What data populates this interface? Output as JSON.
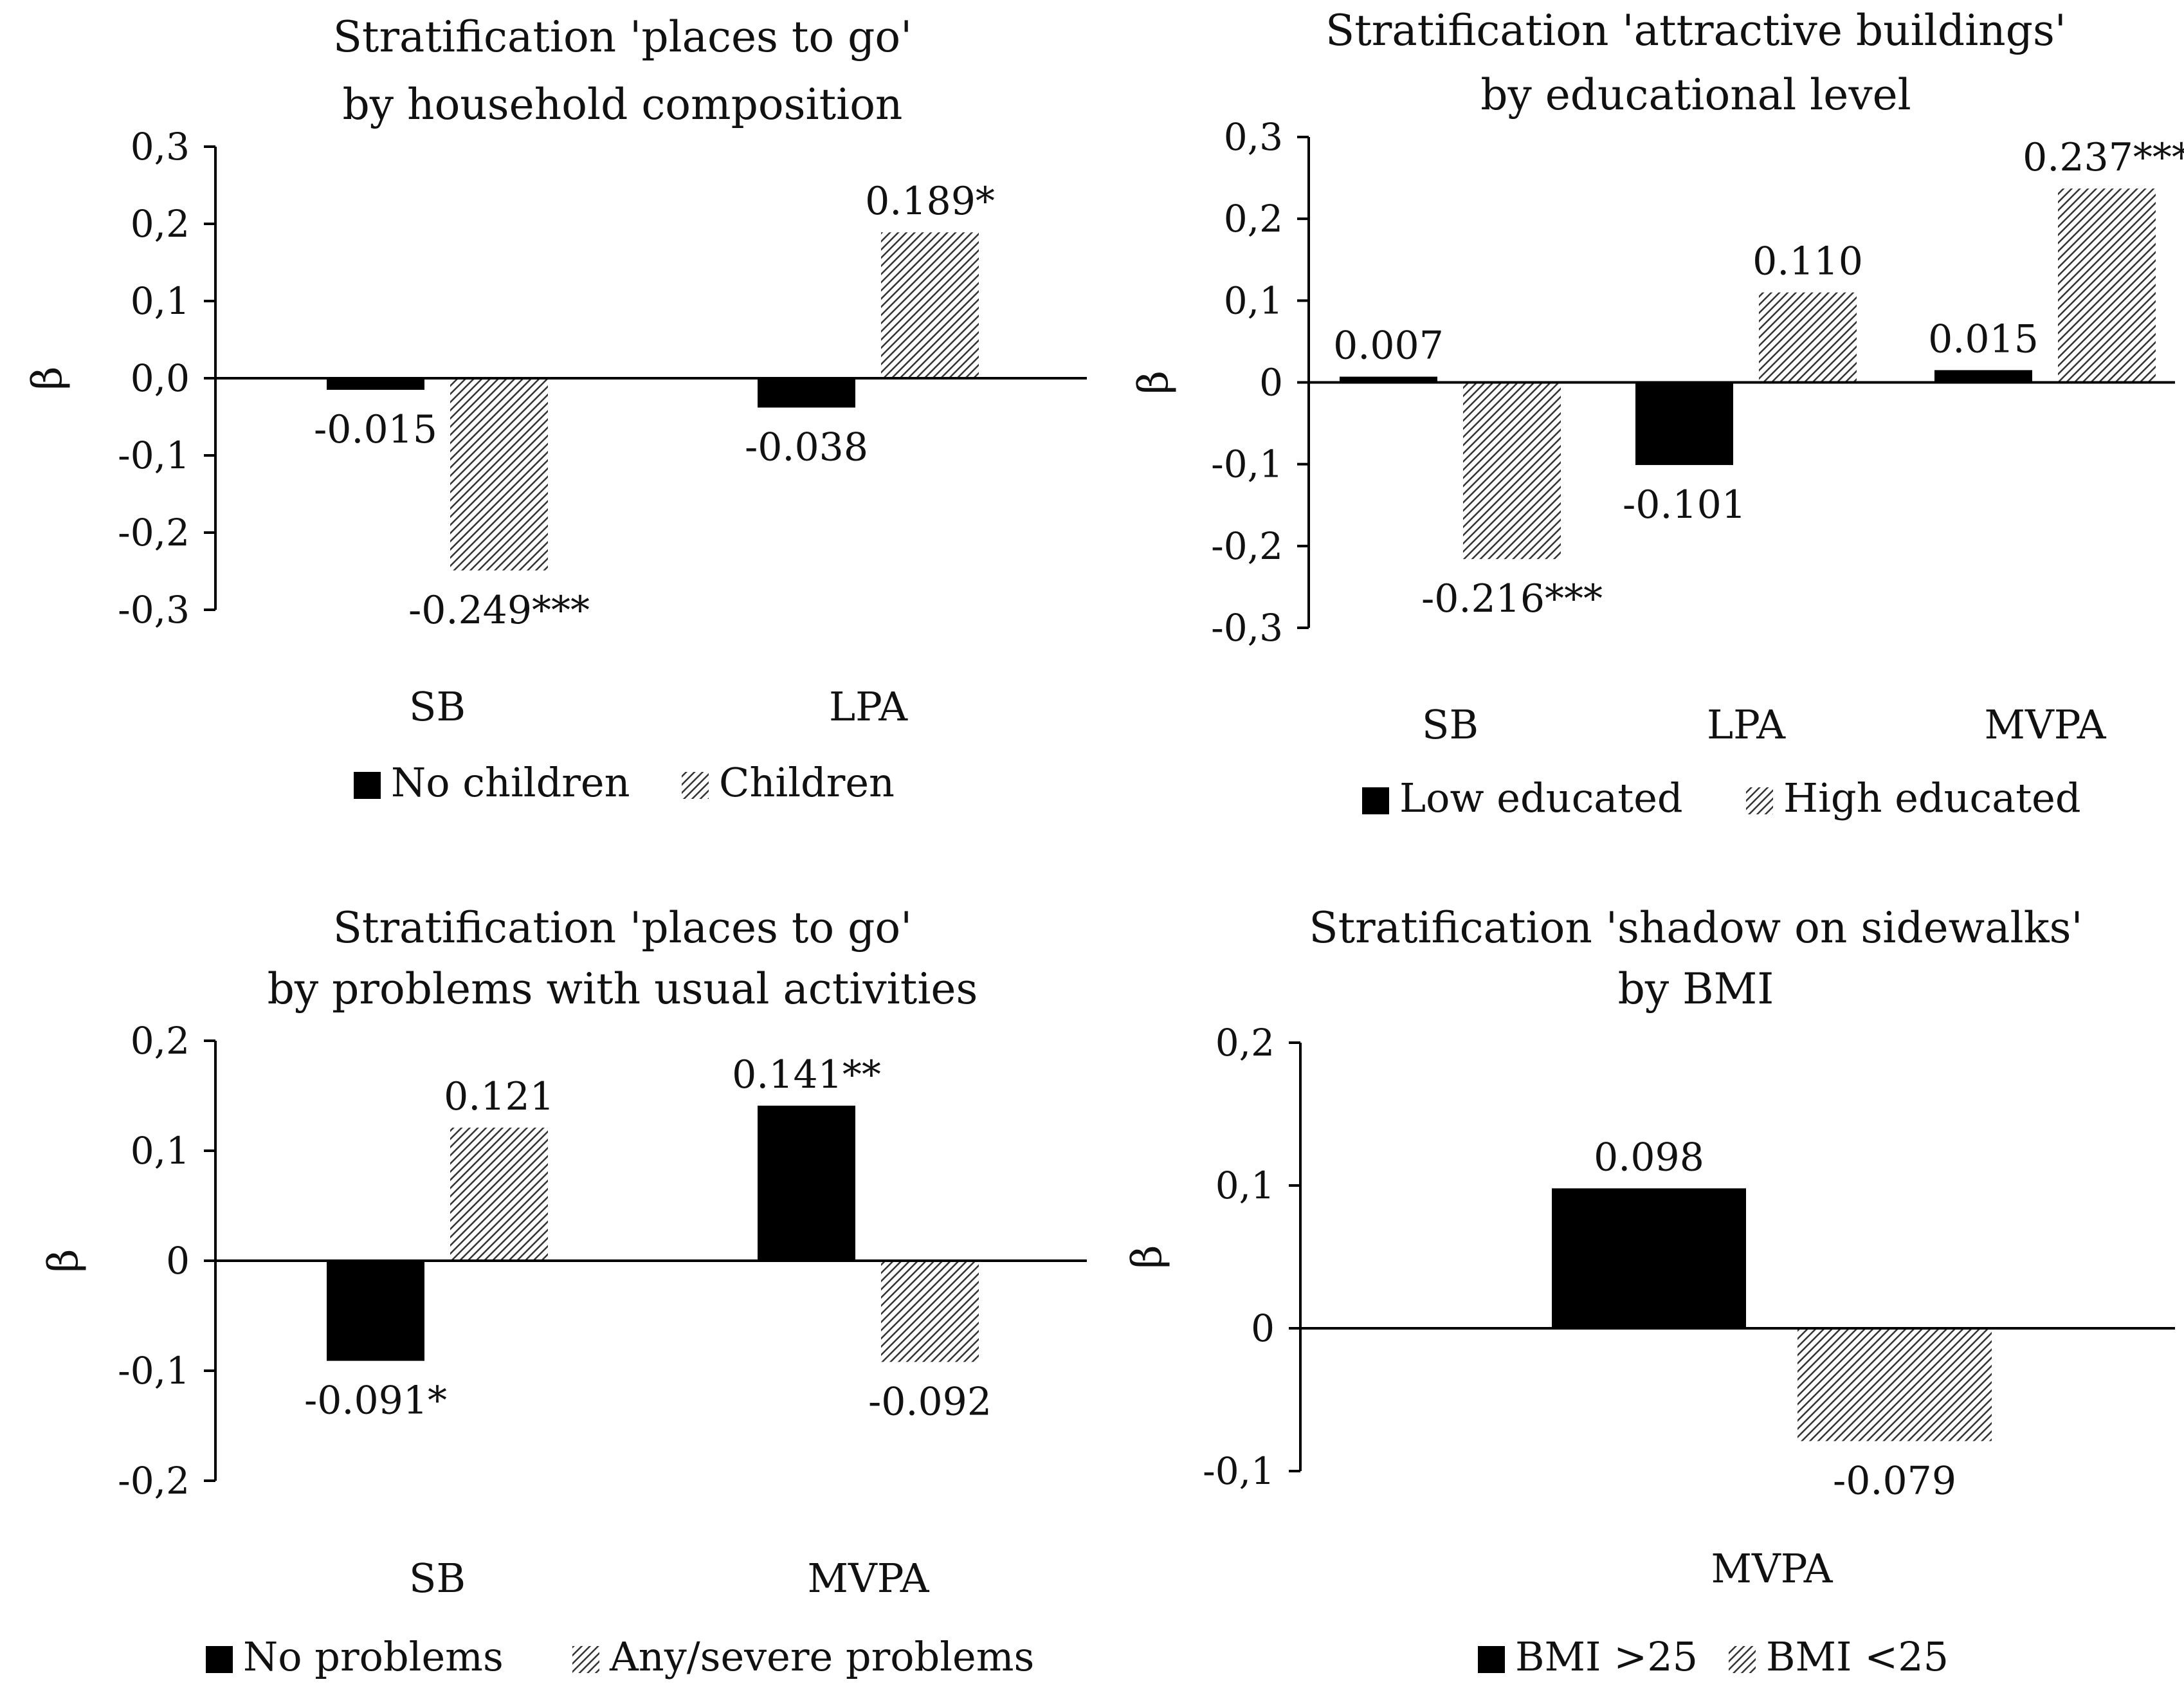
{
  "chart_data": [
    {
      "type": "bar",
      "title": [
        "Stratification 'places to go'",
        "by household composition"
      ],
      "ylabel": "β",
      "ylim": [
        -0.3,
        0.3
      ],
      "yticks": [
        "0,3",
        "0,2",
        "0,1",
        "0,0",
        "-0,1",
        "-0,2",
        "-0,3"
      ],
      "categories": [
        "SB",
        "LPA"
      ],
      "series": [
        {
          "name": "No children",
          "style": "solid",
          "values": [
            -0.015,
            -0.038
          ],
          "labels": [
            "-0.015",
            "-0.038"
          ]
        },
        {
          "name": "Children",
          "style": "hatched",
          "values": [
            -0.249,
            0.189
          ],
          "labels": [
            "-0.249***",
            "0.189*"
          ]
        }
      ]
    },
    {
      "type": "bar",
      "title": [
        "Stratification 'attractive buildings'",
        "by educational level"
      ],
      "ylabel": "β",
      "ylim": [
        -0.3,
        0.3
      ],
      "yticks": [
        "0,3",
        "0,2",
        "0,1",
        "0",
        "-0,1",
        "-0,2",
        "-0,3"
      ],
      "categories": [
        "SB",
        "LPA",
        "MVPA"
      ],
      "series": [
        {
          "name": "Low educated",
          "style": "solid",
          "values": [
            0.007,
            -0.101,
            0.015
          ],
          "labels": [
            "0.007",
            "-0.101",
            "0.015"
          ]
        },
        {
          "name": "High educated",
          "style": "hatched",
          "values": [
            -0.216,
            0.11,
            0.237
          ],
          "labels": [
            "-0.216***",
            "0.110",
            "0.237***"
          ]
        }
      ]
    },
    {
      "type": "bar",
      "title": [
        "Stratification 'places to go'",
        "by problems with usual activities"
      ],
      "ylabel": "β",
      "ylim": [
        -0.2,
        0.2
      ],
      "yticks": [
        "0,2",
        "0,1",
        "0",
        "-0,1",
        "-0,2"
      ],
      "categories": [
        "SB",
        "MVPA"
      ],
      "series": [
        {
          "name": "No problems",
          "style": "solid",
          "values": [
            -0.091,
            0.141
          ],
          "labels": [
            "-0.091*",
            "0.141**"
          ]
        },
        {
          "name": "Any/severe problems",
          "style": "hatched",
          "values": [
            0.121,
            -0.092
          ],
          "labels": [
            "0.121",
            "-0.092"
          ]
        }
      ]
    },
    {
      "type": "bar",
      "title": [
        "Stratification 'shadow on sidewalks'",
        "by BMI"
      ],
      "ylabel": "β",
      "ylim": [
        -0.1,
        0.2
      ],
      "yticks": [
        "0,2",
        "0,1",
        "0",
        "-0,1"
      ],
      "categories": [
        "MVPA"
      ],
      "series": [
        {
          "name": "BMI >25",
          "style": "solid",
          "values": [
            0.098
          ],
          "labels": [
            "0.098"
          ]
        },
        {
          "name": "BMI <25",
          "style": "hatched",
          "values": [
            -0.079
          ],
          "labels": [
            "-0.079"
          ]
        }
      ]
    }
  ],
  "colors": {
    "solid": "#000000",
    "hatch_line": "#333333",
    "hatch_bg": "#ffffff",
    "axis": "#000000"
  }
}
